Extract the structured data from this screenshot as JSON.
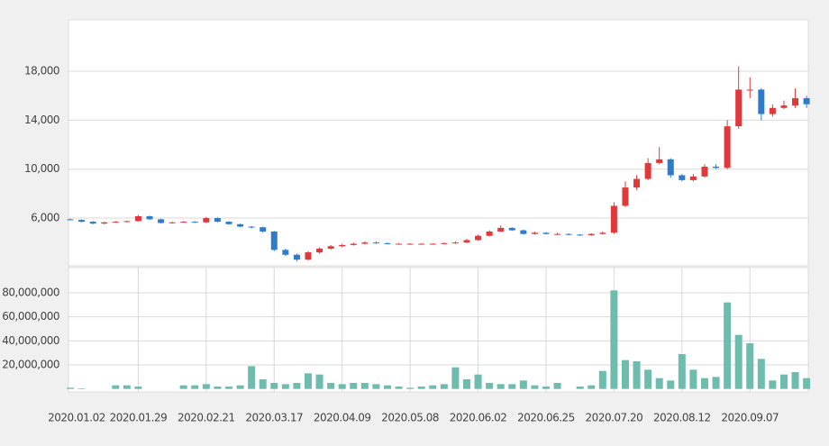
{
  "chart_data": [
    {
      "type": "candlestick",
      "categories": [
        "2020.01.02",
        null,
        null,
        null,
        null,
        null,
        "2020.01.29",
        null,
        null,
        null,
        null,
        null,
        "2020.02.21",
        null,
        null,
        null,
        null,
        null,
        "2020.03.17",
        null,
        null,
        null,
        null,
        null,
        "2020.04.09",
        null,
        null,
        null,
        null,
        null,
        "2020.05.08",
        null,
        null,
        null,
        null,
        null,
        "2020.06.02",
        null,
        null,
        null,
        null,
        null,
        "2020.06.25",
        null,
        null,
        null,
        null,
        null,
        "2020.07.20",
        null,
        null,
        null,
        null,
        null,
        "2020.08.12",
        null,
        null,
        null,
        null,
        null,
        "2020.09.07",
        null,
        null,
        null,
        null,
        null
      ],
      "open": [
        5900,
        5850,
        5700,
        5550,
        5650,
        5700,
        5750,
        6150,
        5900,
        5600,
        5650,
        5700,
        5650,
        6000,
        5700,
        5500,
        5300,
        5250,
        4900,
        3400,
        3000,
        2600,
        3200,
        3500,
        3700,
        3800,
        3900,
        4000,
        3950,
        3900,
        3900,
        3900,
        3900,
        3900,
        3950,
        4000,
        4200,
        4550,
        4900,
        5200,
        5000,
        4700,
        4800,
        4700,
        4700,
        4650,
        4600,
        4700,
        4800,
        7000,
        8500,
        9200,
        10500,
        10800,
        9500,
        9100,
        9400,
        10200,
        10100,
        13500,
        16500,
        16500,
        14500,
        15000,
        15200,
        15800
      ],
      "high": [
        5950,
        5900,
        5750,
        5700,
        5750,
        5800,
        6250,
        6200,
        5950,
        5700,
        5750,
        5750,
        6100,
        6050,
        5750,
        5550,
        5350,
        5300,
        4950,
        3500,
        3100,
        3300,
        3600,
        3800,
        3900,
        4000,
        4100,
        4100,
        4000,
        3950,
        3950,
        3950,
        3950,
        4000,
        4100,
        4300,
        4650,
        5000,
        5400,
        5250,
        5050,
        4900,
        4850,
        4800,
        4750,
        4700,
        4750,
        4900,
        7300,
        9000,
        9500,
        10900,
        11800,
        10900,
        9600,
        9600,
        10400,
        10400,
        14000,
        18400,
        17500,
        16600,
        15300,
        15600,
        16600,
        16000
      ],
      "low": [
        5800,
        5650,
        5500,
        5500,
        5600,
        5650,
        5700,
        5850,
        5550,
        5550,
        5600,
        5600,
        5600,
        5650,
        5450,
        5250,
        5150,
        4800,
        3300,
        2900,
        2450,
        2550,
        3100,
        3400,
        3600,
        3750,
        3850,
        3900,
        3850,
        3850,
        3850,
        3850,
        3850,
        3850,
        3900,
        3950,
        4150,
        4500,
        4850,
        4950,
        4650,
        4650,
        4650,
        4650,
        4600,
        4550,
        4550,
        4650,
        4700,
        6900,
        8300,
        9100,
        10400,
        9300,
        9000,
        9000,
        9300,
        10000,
        10000,
        13300,
        15800,
        14000,
        14300,
        14900,
        15000,
        15000
      ],
      "close": [
        5850,
        5700,
        5550,
        5650,
        5700,
        5750,
        6150,
        5900,
        5600,
        5650,
        5700,
        5650,
        6000,
        5700,
        5500,
        5300,
        5250,
        4900,
        3400,
        3000,
        2600,
        3200,
        3500,
        3700,
        3800,
        3900,
        4000,
        3950,
        3900,
        3900,
        3900,
        3900,
        3900,
        3950,
        4000,
        4200,
        4550,
        4900,
        5200,
        5000,
        4700,
        4800,
        4700,
        4700,
        4650,
        4600,
        4700,
        4800,
        7000,
        8500,
        9200,
        10500,
        10800,
        9500,
        9100,
        9400,
        10200,
        10100,
        13500,
        16500,
        16500,
        14500,
        15000,
        15200,
        15800,
        15300
      ],
      "up_color": "#e0393b",
      "down_color": "#2d7ccc",
      "ylim": [
        2100,
        22200
      ],
      "yticks": [
        {
          "value": 6000,
          "label": "6,000"
        },
        {
          "value": 10000,
          "label": "10,000"
        },
        {
          "value": 14000,
          "label": "14,000"
        },
        {
          "value": 18000,
          "label": "18,000"
        }
      ],
      "grid": true
    },
    {
      "type": "bar",
      "values": [
        1000000,
        500000,
        0,
        0,
        3000000,
        3000000,
        2000000,
        0,
        0,
        0,
        3000000,
        3000000,
        4000000,
        2000000,
        2000000,
        3000000,
        19000000,
        8000000,
        5000000,
        4000000,
        5000000,
        13000000,
        12000000,
        5000000,
        4000000,
        5000000,
        5000000,
        4000000,
        3000000,
        2000000,
        1000000,
        2000000,
        3000000,
        4000000,
        18000000,
        8000000,
        12000000,
        5000000,
        4000000,
        4000000,
        7000000,
        3000000,
        2000000,
        5000000,
        0,
        2000000,
        3000000,
        15000000,
        82000000,
        24000000,
        23000000,
        16000000,
        9000000,
        7000000,
        29000000,
        16000000,
        9000000,
        10000000,
        72000000,
        45000000,
        38000000,
        25000000,
        7000000,
        12000000,
        14000000,
        9000000
      ],
      "color": "#6dbcae",
      "ylim": [
        -2500000,
        101000000
      ],
      "yticks": [
        {
          "value": 20000000,
          "label": "20,000,000"
        },
        {
          "value": 40000000,
          "label": "40,000,000"
        },
        {
          "value": 60000000,
          "label": "60,000,000"
        },
        {
          "value": 80000000,
          "label": "80,000,000"
        }
      ],
      "grid": true
    }
  ]
}
